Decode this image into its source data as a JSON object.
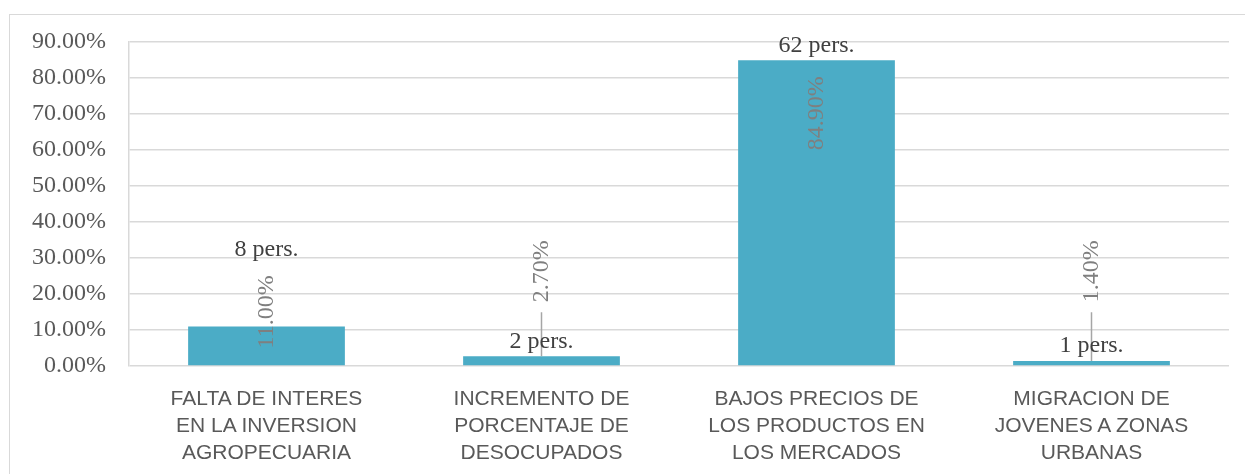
{
  "chart_data": {
    "type": "bar",
    "categories": [
      "FALTA DE INTERES EN LA INVERSION AGROPECUARIA",
      "INCREMENTO DE PORCENTAJE DE DESOCUPADOS",
      "BAJOS PRECIOS DE LOS PRODUCTOS EN LOS MERCADOS",
      "MIGRACION DE JOVENES A ZONAS URBANAS"
    ],
    "values": [
      11,
      2.7,
      84.9,
      1.4
    ],
    "color": "#4bacc6",
    "value_labels": [
      "11.00%",
      "2.70%",
      "84.90%",
      "1.40%"
    ],
    "ylim": [
      0,
      90
    ],
    "yticks": [
      {
        "value": 0,
        "label": "0.00%"
      },
      {
        "value": 10,
        "label": "10.00%"
      },
      {
        "value": 20,
        "label": "20.00%"
      },
      {
        "value": 30,
        "label": "30.00%"
      },
      {
        "value": 40,
        "label": "40.00%"
      },
      {
        "value": 50,
        "label": "50.00%"
      },
      {
        "value": 60,
        "label": "60.00%"
      },
      {
        "value": 70,
        "label": "70.00%"
      },
      {
        "value": 80,
        "label": "80.00%"
      },
      {
        "value": 90,
        "label": "90.00%"
      }
    ],
    "grid": "y",
    "annotations": [
      "8 pers.",
      "2 pers.",
      "62 pers.",
      "1 pers."
    ]
  }
}
